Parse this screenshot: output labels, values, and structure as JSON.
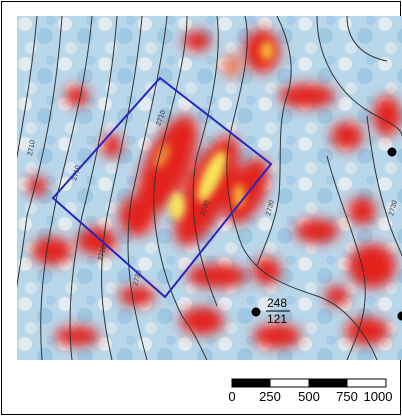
{
  "map": {
    "contour_labels": [
      "2710",
      "2730",
      "2730",
      "2710",
      "2710",
      "2730",
      "2730",
      "2710"
    ],
    "wells": [
      {
        "top": "248",
        "bottom": "121"
      }
    ]
  },
  "scale_bar": {
    "ticks": [
      "0",
      "250",
      "500",
      "750",
      "1000"
    ],
    "segments": 4
  },
  "colors": {
    "background_low": "#a8cfe6",
    "background_mid": "#dbe7ee",
    "anomaly_red": "#e3241b",
    "anomaly_yellow": "#f8e55a",
    "contour": "#333333",
    "polygon": "#2a24c0",
    "well": "#000000"
  }
}
